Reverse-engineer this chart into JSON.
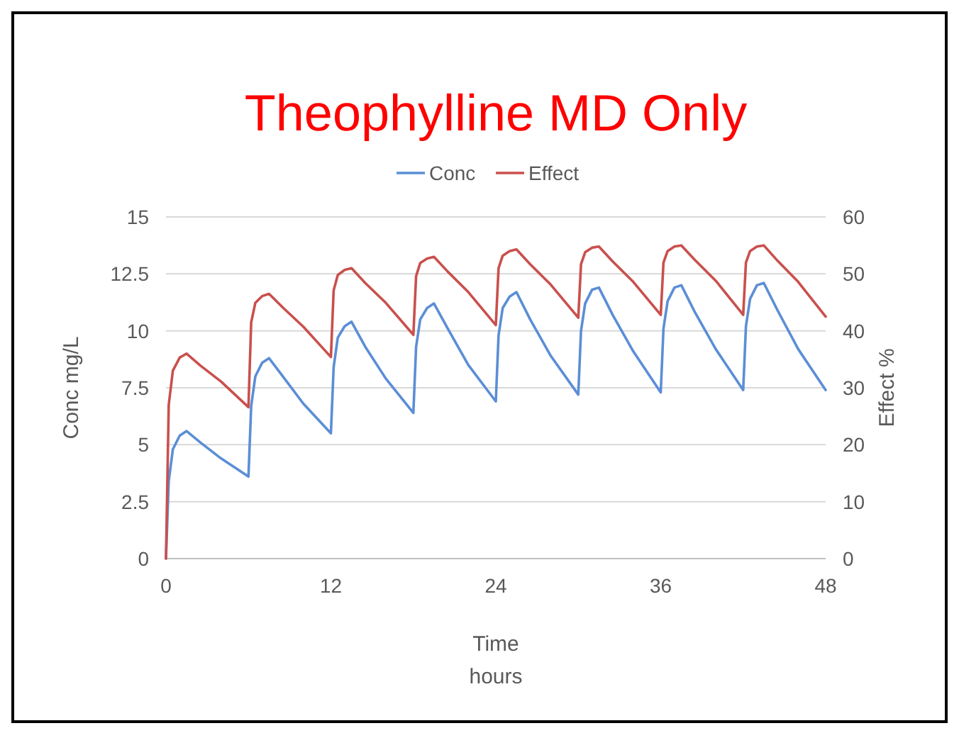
{
  "chart_data": {
    "type": "line",
    "title": "Theophylline MD Only",
    "xlabel": "Time\nhours",
    "ylabel": "Conc mg/L",
    "y2label": "Effect %",
    "x": [
      0,
      0.2,
      0.5,
      1,
      1.5,
      2.5,
      4,
      6,
      6.2,
      6.5,
      7,
      7.5,
      8.5,
      10,
      12,
      12.2,
      12.5,
      13,
      13.5,
      14.5,
      16,
      18,
      18.2,
      18.5,
      19,
      19.5,
      20.5,
      22,
      24,
      24.2,
      24.5,
      25,
      25.5,
      26.5,
      28,
      30,
      30.2,
      30.5,
      31,
      31.5,
      32.5,
      34,
      36,
      36.2,
      36.5,
      37,
      37.5,
      38.5,
      40,
      42,
      42.2,
      42.5,
      43,
      43.5,
      44.5,
      46,
      48
    ],
    "series": [
      {
        "name": "Conc",
        "color": "#5b8ed6",
        "values": [
          0,
          3.4,
          4.8,
          5.4,
          5.6,
          5.1,
          4.4,
          3.6,
          6.7,
          8.0,
          8.6,
          8.8,
          8.0,
          6.8,
          5.5,
          8.4,
          9.7,
          10.2,
          10.4,
          9.3,
          7.9,
          6.4,
          9.3,
          10.5,
          11.0,
          11.2,
          10.1,
          8.5,
          6.9,
          9.8,
          11.0,
          11.5,
          11.7,
          10.5,
          8.9,
          7.2,
          10.0,
          11.2,
          11.8,
          11.9,
          10.7,
          9.1,
          7.3,
          10.1,
          11.3,
          11.9,
          12.0,
          10.8,
          9.2,
          7.4,
          10.2,
          11.4,
          12.0,
          12.1,
          10.9,
          9.2,
          7.4
        ]
      },
      {
        "name": "Effect",
        "color": "#c9504d",
        "axis": "y2",
        "values": [
          0,
          27,
          33,
          35.3,
          36,
          33.9,
          31.1,
          26.6,
          41.5,
          44.9,
          46.1,
          46.5,
          44.1,
          40.7,
          35.4,
          47.1,
          49.8,
          50.7,
          51,
          48.4,
          44.9,
          39.3,
          49.6,
          51.9,
          52.7,
          53,
          50.4,
          46.8,
          41,
          51,
          53.2,
          54,
          54.3,
          51.7,
          48.1,
          42.3,
          51.7,
          53.8,
          54.6,
          54.8,
          52.2,
          48.6,
          42.8,
          52,
          54,
          54.8,
          55,
          52.4,
          48.8,
          42.8,
          52,
          54,
          54.8,
          55,
          52.3,
          48.6,
          42.5
        ]
      }
    ],
    "xlim": [
      0,
      48
    ],
    "xticks": [
      0,
      12,
      24,
      36,
      48
    ],
    "ylim": [
      0,
      15
    ],
    "yticks": [
      0,
      2.5,
      5,
      7.5,
      10,
      12.5,
      15
    ],
    "y2lim": [
      0,
      60
    ],
    "y2ticks": [
      0,
      10,
      20,
      30,
      40,
      50,
      60
    ],
    "grid": "y",
    "legend": "top",
    "marker": "none",
    "line_style": "solid"
  }
}
